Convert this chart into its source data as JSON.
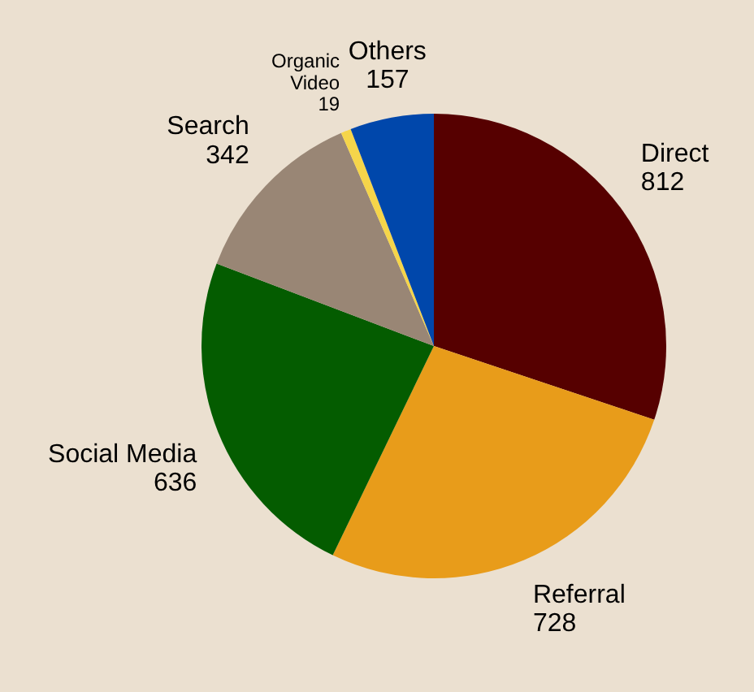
{
  "chart_data": {
    "type": "pie",
    "categories": [
      "Direct",
      "Referral",
      "Social Media",
      "Search",
      "Organic Video",
      "Others"
    ],
    "values": [
      812,
      728,
      636,
      342,
      19,
      157
    ],
    "colors": [
      "#560000",
      "#e89c1a",
      "#045c00",
      "#998675",
      "#f5d54a",
      "#0047ab"
    ],
    "data_labels": true,
    "legend": false
  }
}
